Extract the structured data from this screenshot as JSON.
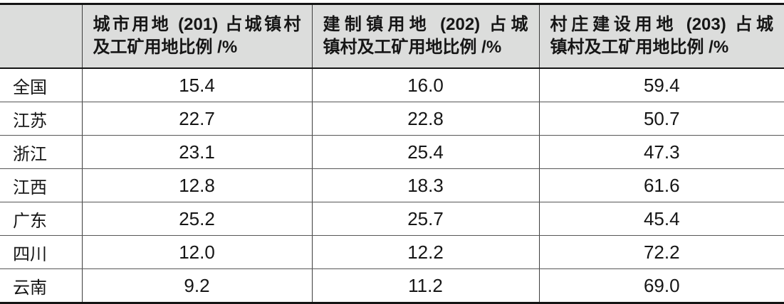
{
  "table": {
    "colors": {
      "header_bg": "#dcdddc",
      "heavy_border": "#141414",
      "light_border": "#565656",
      "text": "#161616"
    },
    "header": {
      "corner": "",
      "columns": [
        {
          "line1": "城市用地 (201) 占城镇村",
          "line2": "及工矿用地比例 /%"
        },
        {
          "line1": "建制镇用地 (202) 占城",
          "line2": "镇村及工矿用地比例 /%"
        },
        {
          "line1": "村庄建设用地 (203) 占城",
          "line2": "镇村及工矿用地比例 /%"
        }
      ]
    },
    "rows": [
      {
        "region": "全国",
        "values": [
          "15.4",
          "16.0",
          "59.4"
        ]
      },
      {
        "region": "江苏",
        "values": [
          "22.7",
          "22.8",
          "50.7"
        ]
      },
      {
        "region": "浙江",
        "values": [
          "23.1",
          "25.4",
          "47.3"
        ]
      },
      {
        "region": "江西",
        "values": [
          "12.8",
          "18.3",
          "61.6"
        ]
      },
      {
        "region": "广东",
        "values": [
          "25.2",
          "25.7",
          "45.4"
        ]
      },
      {
        "region": "四川",
        "values": [
          "12.0",
          "12.2",
          "72.2"
        ]
      },
      {
        "region": "云南",
        "values": [
          "9.2",
          "11.2",
          "69.0"
        ]
      }
    ]
  },
  "chart_data": {
    "type": "table",
    "columns": [
      "",
      "城市用地 (201) 占城镇村及工矿用地比例 /%",
      "建制镇用地 (202) 占城镇村及工矿用地比例 /%",
      "村庄建设用地 (203) 占城镇村及工矿用地比例 /%"
    ],
    "categories": [
      "全国",
      "江苏",
      "浙江",
      "江西",
      "广东",
      "四川",
      "云南"
    ],
    "series": [
      {
        "name": "城市用地 (201) 占城镇村及工矿用地比例 /%",
        "values": [
          15.4,
          22.7,
          23.1,
          12.8,
          25.2,
          12.0,
          9.2
        ]
      },
      {
        "name": "建制镇用地 (202) 占城镇村及工矿用地比例 /%",
        "values": [
          16.0,
          22.8,
          25.4,
          18.3,
          25.7,
          12.2,
          11.2
        ]
      },
      {
        "name": "村庄建设用地 (203) 占城镇村及工矿用地比例 /%",
        "values": [
          59.4,
          50.7,
          47.3,
          61.6,
          45.4,
          72.2,
          69.0
        ]
      }
    ],
    "unit": "%"
  }
}
